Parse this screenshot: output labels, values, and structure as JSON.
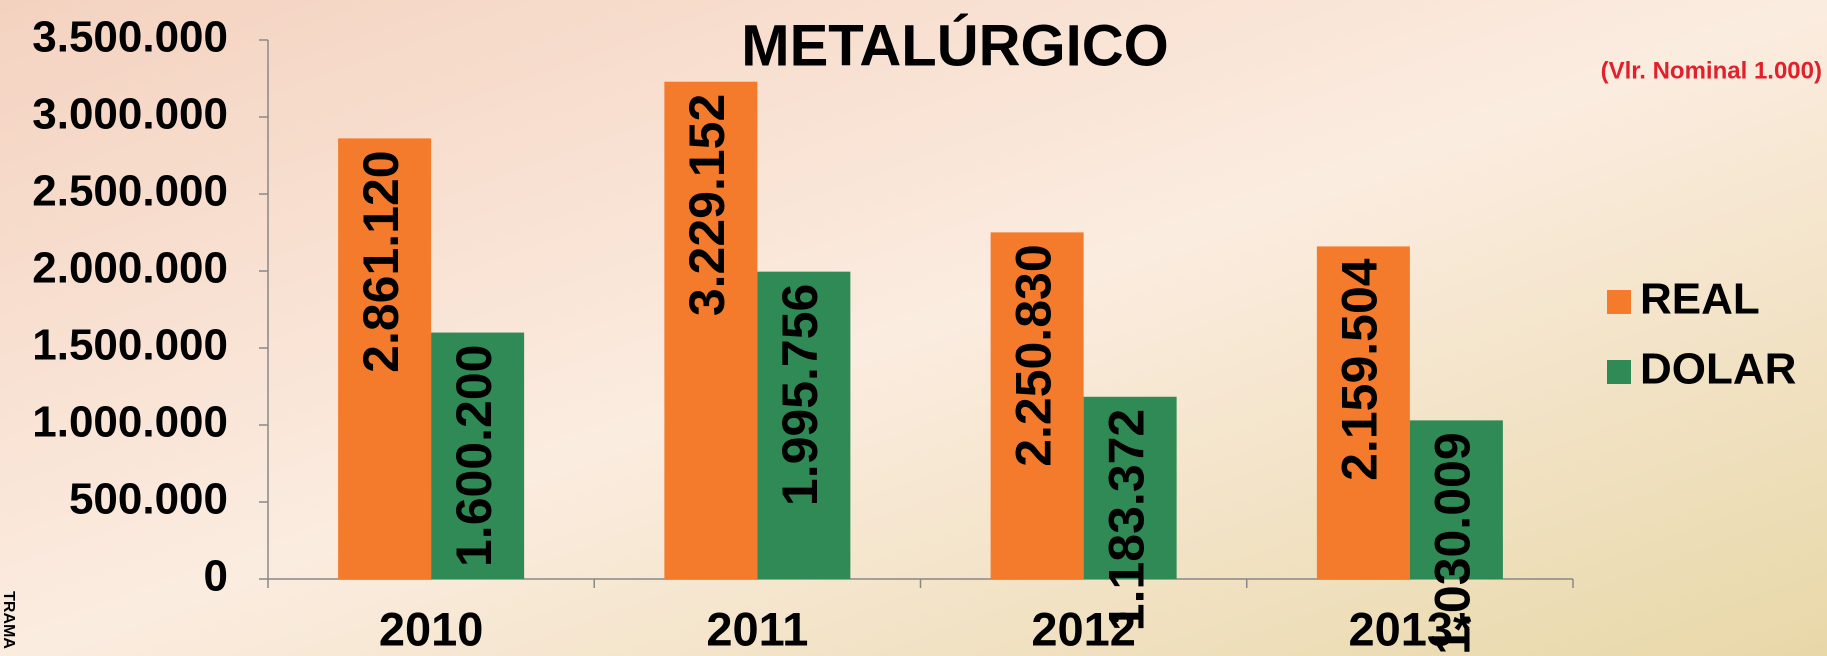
{
  "chart_data": {
    "type": "bar",
    "title": "METALÚRGICO",
    "subtitle": "(Vlr. Nominal 1.000)",
    "side_text": "TRAMA",
    "categories": [
      "2010",
      "2011",
      "2012",
      "2013*"
    ],
    "series": [
      {
        "name": "REAL",
        "color": "#f47b2c",
        "values": [
          2861120,
          3229152,
          2250830,
          2159504
        ],
        "value_labels": [
          "2.861.120",
          "3.229.152",
          "2.250.830",
          "2.159.504"
        ]
      },
      {
        "name": "DOLAR",
        "color": "#2f8a55",
        "values": [
          1600200,
          1995756,
          1183372,
          1030009
        ],
        "value_labels": [
          "1.600.200",
          "1.995.756",
          "1.183.372",
          "1.030.009"
        ]
      }
    ],
    "ylim": [
      0,
      3500000
    ],
    "yticks": [
      0,
      {
        "value": 500000,
        "label": "500.000"
      },
      {
        "value": 1000000,
        "label": "1.000.000"
      },
      {
        "value": 1500000,
        "label": "1.500.000"
      },
      {
        "value": 2000000,
        "label": "2.000.000"
      },
      {
        "value": 2500000,
        "label": "2.500.000"
      },
      {
        "value": 3000000,
        "label": "3.000.000"
      },
      {
        "value": 3500000,
        "label": "3.500.000"
      }
    ],
    "legend": "right"
  }
}
